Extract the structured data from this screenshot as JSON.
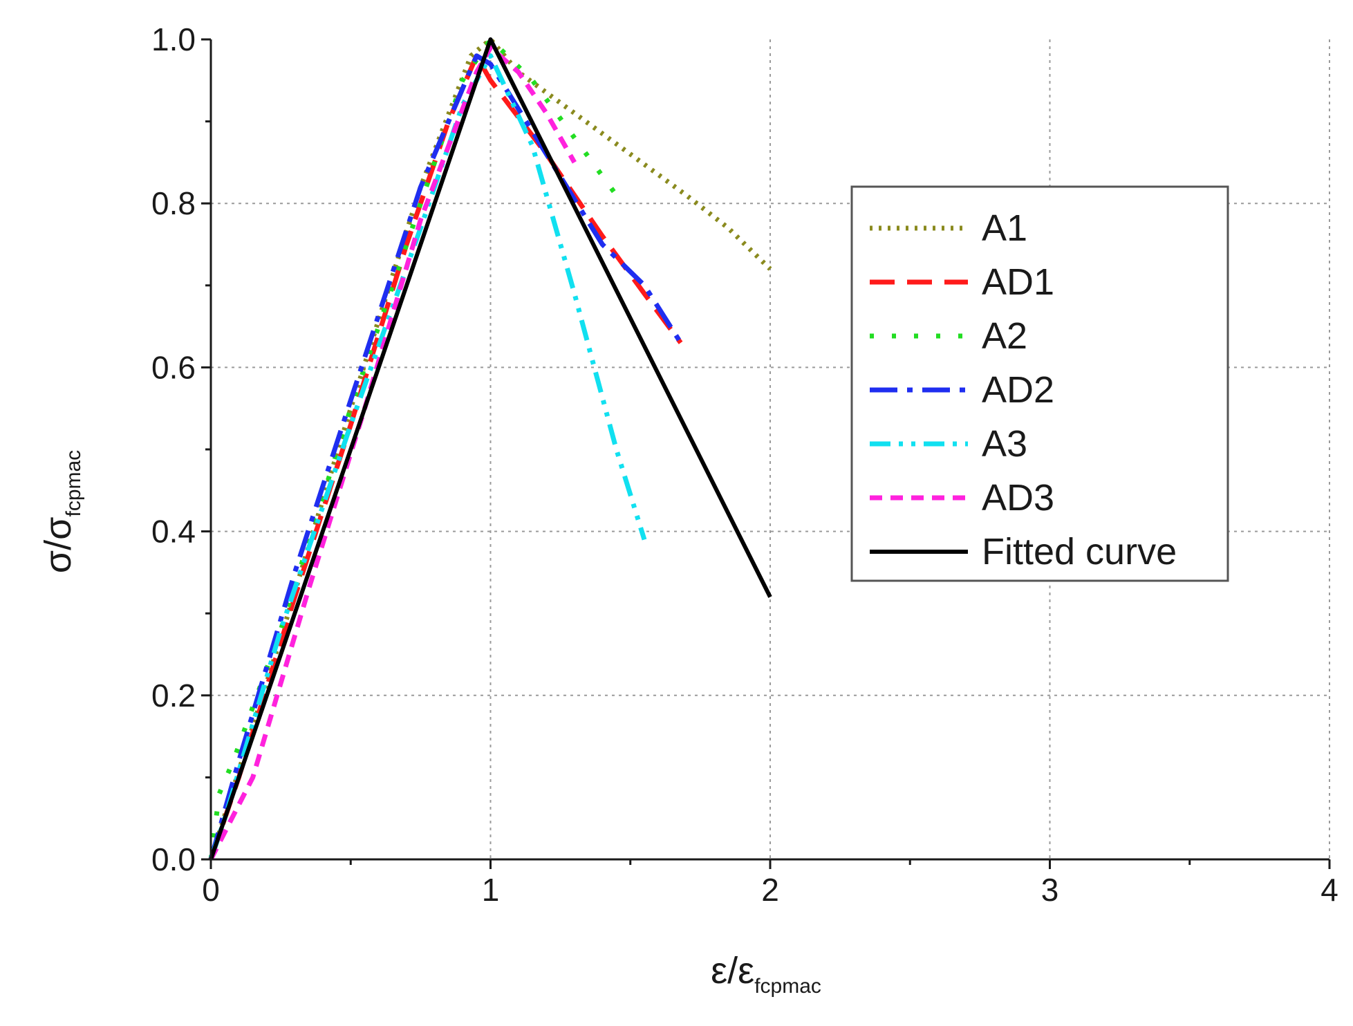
{
  "chart_data": {
    "type": "line",
    "title": "",
    "xlabel": {
      "main": "ε/ε",
      "sub": "fcpmac"
    },
    "ylabel": {
      "main": "σ/σ",
      "sub": "fcpmac"
    },
    "xlim": [
      0,
      4
    ],
    "ylim": [
      0,
      1.0
    ],
    "x_ticks": [
      0,
      1,
      2,
      3,
      4
    ],
    "x_tick_labels": [
      "0",
      "1",
      "2",
      "3",
      "4"
    ],
    "y_ticks": [
      0,
      0.2,
      0.4,
      0.6,
      0.8,
      1.0
    ],
    "y_tick_labels": [
      "0.0",
      "0.2",
      "0.4",
      "0.6",
      "0.8",
      "1.0"
    ],
    "grid": true,
    "legend_position": "right",
    "series": [
      {
        "name": "A1",
        "color": "#8a8a1e",
        "dash": "dotted",
        "x": [
          0,
          0.25,
          0.5,
          0.75,
          0.93,
          1.0,
          1.1,
          1.3,
          1.5,
          1.7,
          1.85,
          2.0
        ],
        "y": [
          0,
          0.27,
          0.55,
          0.82,
          0.98,
          1.0,
          0.96,
          0.91,
          0.86,
          0.81,
          0.77,
          0.72
        ]
      },
      {
        "name": "AD1",
        "color": "#ff1a1a",
        "dash": "dash",
        "x": [
          0,
          0.1,
          0.3,
          0.5,
          0.7,
          0.85,
          0.95,
          1.0,
          1.2,
          1.4,
          1.55,
          1.68
        ],
        "y": [
          0,
          0.1,
          0.32,
          0.53,
          0.75,
          0.9,
          0.98,
          0.95,
          0.86,
          0.76,
          0.69,
          0.63
        ]
      },
      {
        "name": "A2",
        "color": "#22dd22",
        "dash": "dot-sparse",
        "x": [
          0,
          0.03,
          0.08,
          0.25,
          0.5,
          0.75,
          0.9,
          1.0,
          1.15,
          1.3,
          1.45
        ],
        "y": [
          0,
          0.08,
          0.12,
          0.28,
          0.55,
          0.8,
          0.95,
          1.0,
          0.95,
          0.88,
          0.81
        ]
      },
      {
        "name": "AD2",
        "color": "#1f2ef0",
        "dash": "dash-dot",
        "x": [
          0,
          0.1,
          0.3,
          0.5,
          0.75,
          0.95,
          1.0,
          1.2,
          1.4,
          1.55,
          1.68
        ],
        "y": [
          0,
          0.12,
          0.35,
          0.56,
          0.82,
          0.98,
          0.97,
          0.86,
          0.75,
          0.7,
          0.63
        ]
      },
      {
        "name": "A3",
        "color": "#11e0f0",
        "dash": "dash-dot-dot",
        "x": [
          0,
          0.05,
          0.25,
          0.5,
          0.75,
          0.9,
          1.0,
          1.15,
          1.3,
          1.45,
          1.55
        ],
        "y": [
          0,
          0.05,
          0.28,
          0.53,
          0.77,
          0.92,
          0.98,
          0.87,
          0.69,
          0.5,
          0.39
        ]
      },
      {
        "name": "AD3",
        "color": "#ff22dd",
        "dash": "short-dash",
        "x": [
          0,
          0.15,
          0.35,
          0.55,
          0.75,
          0.95,
          1.0,
          1.1,
          1.2,
          1.3
        ],
        "y": [
          0,
          0.1,
          0.33,
          0.55,
          0.78,
          0.96,
          0.99,
          0.96,
          0.91,
          0.85
        ]
      },
      {
        "name": "Fitted curve",
        "color": "#000000",
        "dash": "solid",
        "x": [
          0,
          1.0,
          2.0
        ],
        "y": [
          0,
          1.0,
          0.32
        ]
      }
    ]
  }
}
